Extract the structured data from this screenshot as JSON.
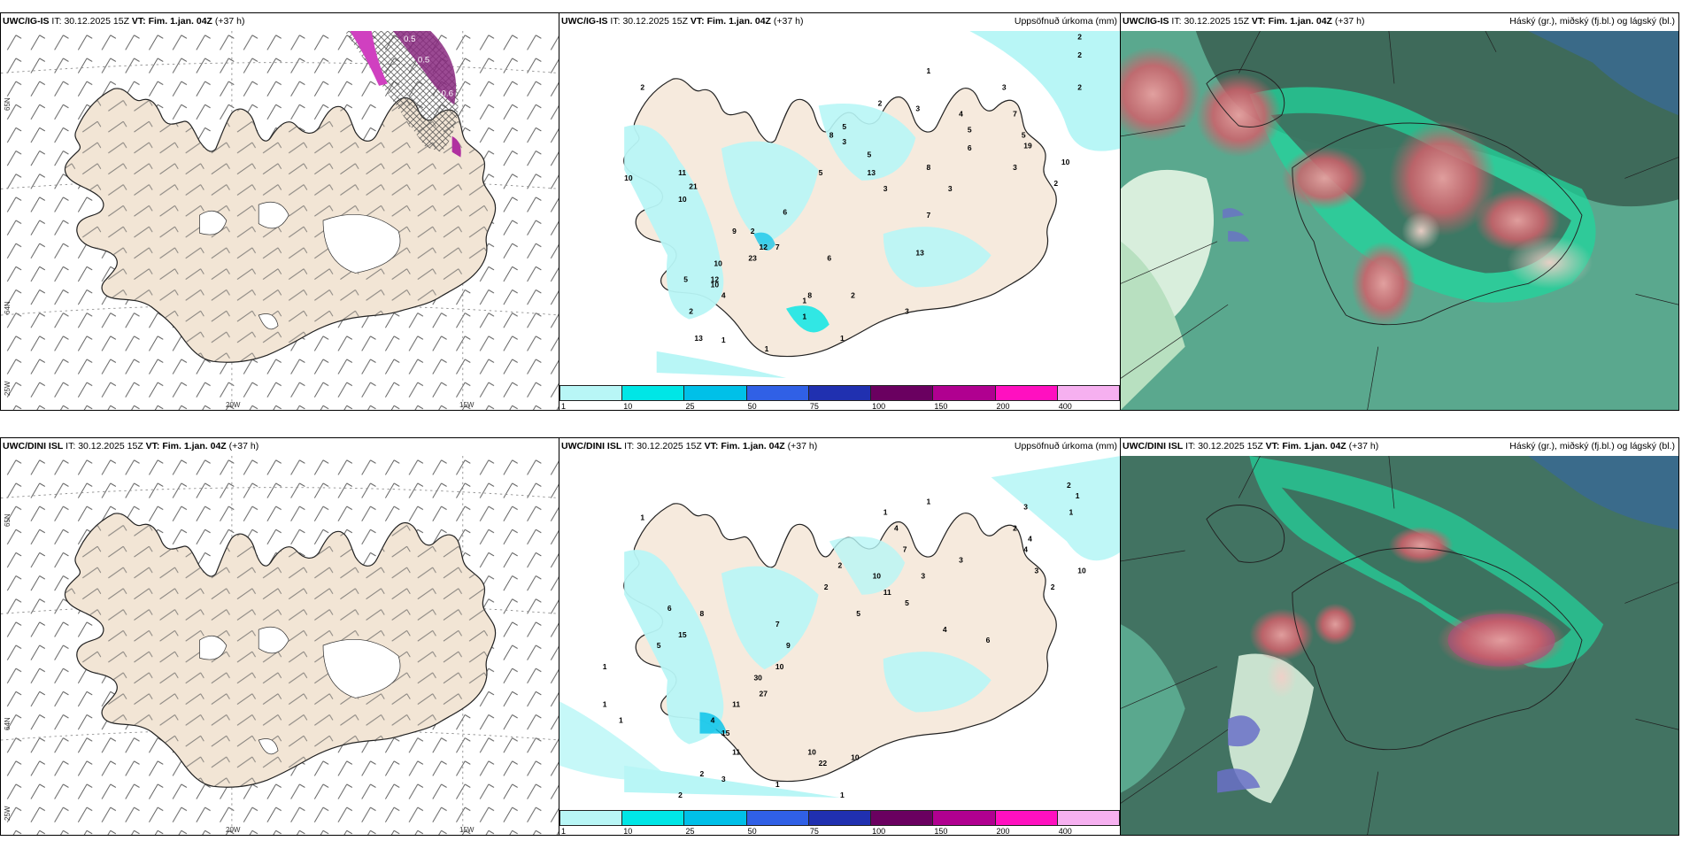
{
  "rows": [
    {
      "model": "UWC/IG-IS",
      "it_label": "IT:",
      "it_value": "30.12.2025 15Z",
      "vt_label": "VT:",
      "vt_value": "Fim. 1.jan. 04Z",
      "lead": "(+37 h)"
    },
    {
      "model": "UWC/DINI ISL",
      "it_label": "IT:",
      "it_value": "30.12.2025 15Z",
      "vt_label": "VT:",
      "vt_value": "Fim. 1.jan. 04Z",
      "lead": "(+37 h)"
    }
  ],
  "precip_title": "Uppsöfnuð úrkoma (mm)",
  "cloud_title": "Háský (gr.), miðský (fj.bl.) og lágský (bl.)",
  "precip_scale": {
    "labels": [
      "1",
      "10",
      "25",
      "50",
      "75",
      "100",
      "150",
      "200",
      "400"
    ],
    "colors": [
      "#b8f6f6",
      "#00e6e6",
      "#00c0e8",
      "#3060e6",
      "#2030b0",
      "#6a0060",
      "#b00090",
      "#ff10c0",
      "#f6b0f0"
    ]
  },
  "lon_labels": [
    "20W",
    "15W"
  ],
  "lat_labels": [
    "65N",
    "64N",
    "25W"
  ],
  "ice_labels": [
    "0.5",
    "0.5",
    "0.5",
    "0.6",
    "0.6"
  ],
  "precip_numbers_top": [
    "2",
    "2",
    "2",
    "2",
    "3",
    "1",
    "3",
    "2",
    "3",
    "4",
    "5",
    "7",
    "5",
    "6",
    "19",
    "10",
    "3",
    "2",
    "2",
    "8",
    "5",
    "3",
    "5",
    "8",
    "3",
    "3",
    "5",
    "3",
    "4",
    "7",
    "8",
    "13",
    "6",
    "11",
    "7",
    "6",
    "12",
    "23",
    "11",
    "21",
    "10",
    "9",
    "10",
    "12",
    "5",
    "4",
    "2",
    "8",
    "2",
    "3",
    "4",
    "2",
    "3",
    "2",
    "10",
    "13",
    "13",
    "1",
    "1",
    "1",
    "1",
    "1",
    "1"
  ],
  "precip_numbers_bottom": [
    "2",
    "1",
    "1",
    "1",
    "3",
    "2",
    "4",
    "4",
    "3",
    "2",
    "1",
    "1",
    "4",
    "3",
    "10",
    "2",
    "2",
    "7",
    "3",
    "10",
    "6",
    "4",
    "5",
    "3",
    "2",
    "11",
    "5",
    "7",
    "8",
    "6",
    "9",
    "15",
    "3",
    "1",
    "5",
    "30",
    "10",
    "27",
    "2",
    "9",
    "11",
    "4",
    "15",
    "6",
    "5",
    "11",
    "4",
    "10",
    "10",
    "22",
    "1",
    "2",
    "2",
    "3",
    "2",
    "1",
    "1",
    "1",
    "1",
    "1",
    "1",
    "1"
  ],
  "colors": {
    "land": "#f2e5d5",
    "precip_light": "#b8f6f6",
    "precip_mid": "#00e6e6",
    "cloud_dark": "#3e6a5a",
    "cloud_green": "#22d59c",
    "cloud_red": "#d0606a"
  }
}
